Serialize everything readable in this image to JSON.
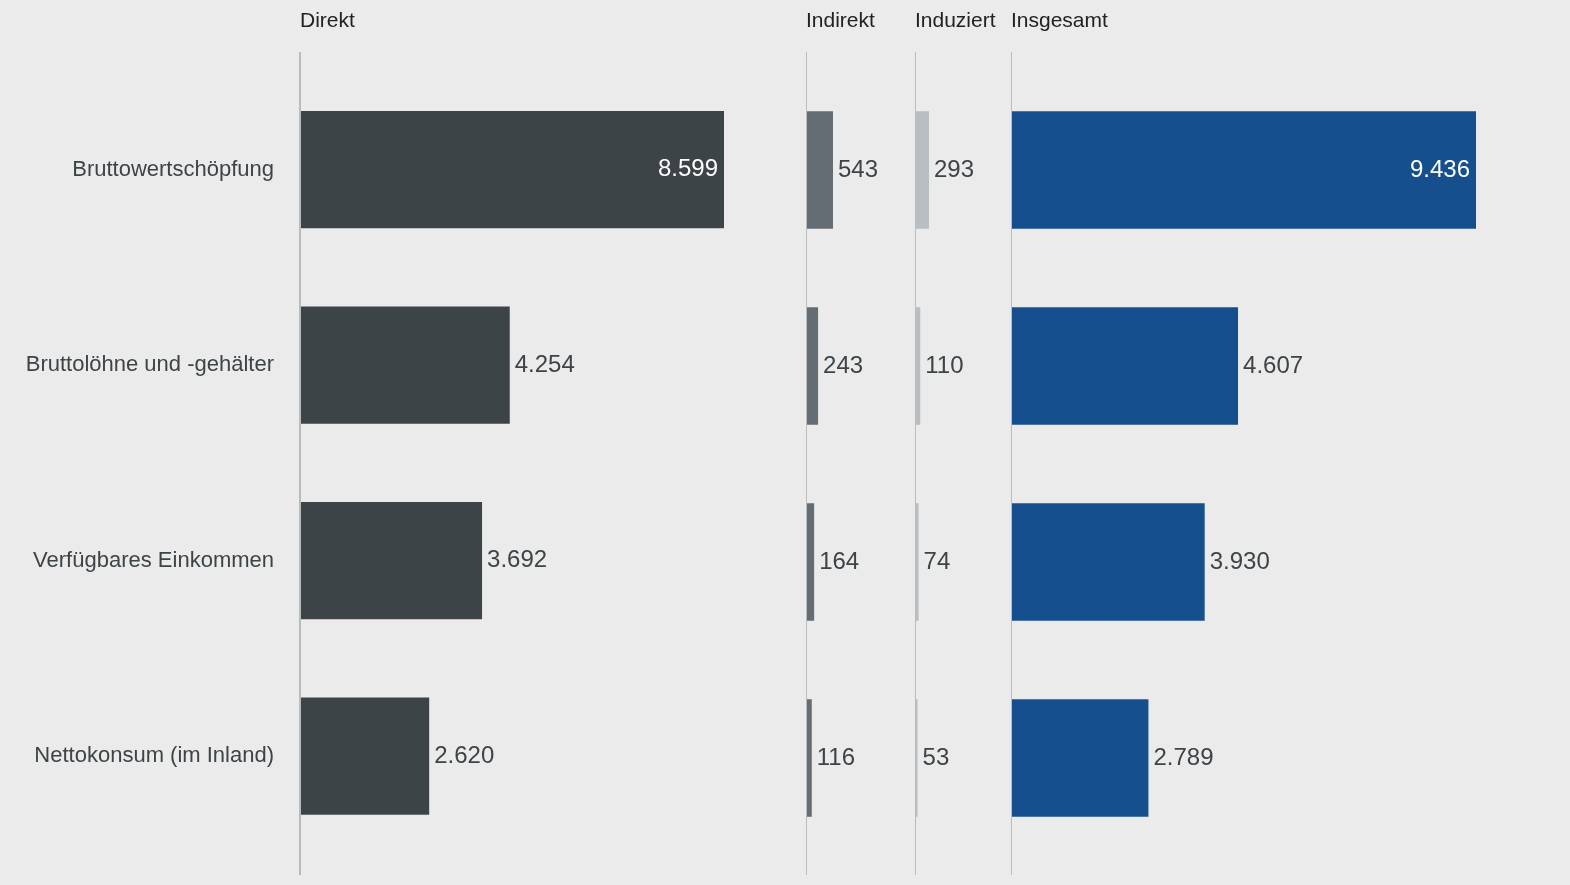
{
  "chart_data": [
    {
      "type": "bar",
      "orientation": "horizontal",
      "title": "Direkt",
      "categories": [
        "Bruttowertschöpfung",
        "Bruttolöhne und -gehälter",
        "Verfügbares Einkommen",
        "Nettokonsum (im Inland)"
      ],
      "values": [
        8599,
        4254,
        3692,
        2620
      ],
      "value_labels": [
        "8.599",
        "4.254",
        "3.692",
        "2.620"
      ],
      "color": "#3d4448",
      "tick_labels": "y"
    },
    {
      "type": "bar",
      "orientation": "horizontal",
      "title": "Indirekt",
      "categories": [
        null,
        null,
        null,
        null
      ],
      "values": [
        543,
        243,
        164,
        116
      ],
      "value_labels": [
        "543",
        "243",
        "164",
        "116"
      ],
      "color": "#646c74",
      "tick_labels": false
    },
    {
      "type": "bar",
      "orientation": "horizontal",
      "title": "Induziert",
      "categories": [
        null,
        null,
        null,
        null
      ],
      "values": [
        293,
        110,
        74,
        53
      ],
      "value_labels": [
        "293",
        "110",
        "74",
        "53"
      ],
      "color": "#b8bec2",
      "tick_labels": false
    },
    {
      "type": "bar",
      "orientation": "horizontal",
      "title": "Insgesamt",
      "categories": [
        null,
        null,
        null,
        null
      ],
      "values": [
        9436,
        4607,
        3930,
        2789
      ],
      "value_labels": [
        "9.436",
        "4.607",
        "3.930",
        "2.789"
      ],
      "color": "#164f8d",
      "tick_labels": false
    }
  ]
}
